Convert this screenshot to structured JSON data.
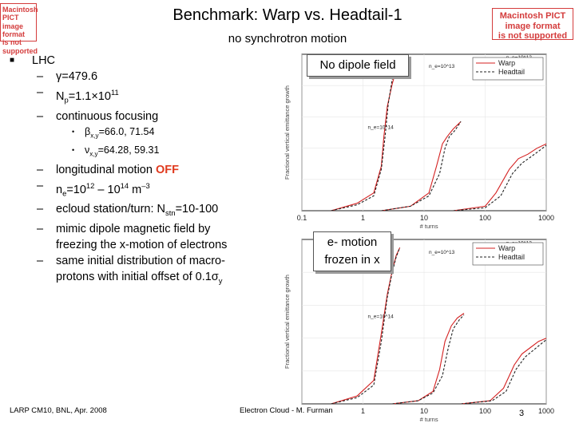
{
  "header": {
    "title": "Benchmark: Warp vs. Headtail-1",
    "subtitle": "no synchrotron motion",
    "pict_left": [
      "Macintosh PICT",
      "image format",
      "is not supported"
    ],
    "pict_right": [
      "Macintosh PICT",
      "image format",
      "is not supported"
    ]
  },
  "bullets": {
    "lhc": "LHC",
    "gamma": "γ=479.6",
    "np_prefix": "N",
    "np_sub": "p",
    "np_mid": "=1.1×10",
    "np_sup": "11",
    "continuous": "continuous focusing",
    "beta_prefix": "β",
    "beta_sub": "x,y",
    "beta_val": "=66.0, 71.54",
    "nu_prefix": "ν",
    "nu_sub": "x,y",
    "nu_val": "=64.28, 59.31",
    "long_text": "longitudinal motion ",
    "long_off": "OFF",
    "ne_prefix": "n",
    "ne_sub": "e",
    "ne_eq": "=10",
    "ne_sup1": "12",
    "ne_dash": " – 10",
    "ne_sup2": "14",
    "ne_unit": " m",
    "ne_sup3": "–3",
    "ecloud_prefix": "ecloud station/turn: N",
    "ecloud_sub": "stn",
    "ecloud_val": "=10-100",
    "mimic_1": "mimic dipole magnetic field by",
    "mimic_2": "freezing the x-motion of electrons",
    "same_1": "same initial distribution of macro-",
    "same_2_prefix": "protons with initial offset of 0.1σ",
    "same_2_sub": "y"
  },
  "callouts": {
    "no_dipole": "No dipole field",
    "frozen_1": "e- motion",
    "frozen_2": "frozen in x"
  },
  "footer": {
    "left": "LARP CM10, BNL, Apr. 2008",
    "center": "Electron Cloud - M. Furman",
    "page": "3"
  },
  "colors": {
    "warp": "#d42020",
    "headtail": "#222222",
    "off": "#e03a1e",
    "pict": "#d43c3c"
  },
  "chart_data": [
    {
      "type": "line",
      "title": "",
      "xlabel": "# turns",
      "ylabel": "Fractional vertical emittance growth",
      "xscale": "log",
      "xlim": [
        0.1,
        1000
      ],
      "xticks": [
        "0.1",
        "1",
        "10",
        "100",
        "1000"
      ],
      "legend": [
        "Warp",
        "Headtail"
      ],
      "annotations": [
        "n_e=10^14",
        "n_e=10^13",
        "n_e=10^12"
      ],
      "series": [
        {
          "name": "Warp n_e=10^14",
          "x": [
            0.3,
            0.8,
            1.5,
            2.0,
            2.2,
            2.5,
            3.0,
            3.5,
            4.0
          ],
          "y": [
            0.0,
            0.05,
            0.12,
            0.3,
            0.5,
            0.7,
            0.85,
            0.95,
            1.0
          ]
        },
        {
          "name": "Headtail n_e=10^14",
          "x": [
            0.3,
            0.8,
            1.5,
            2.0,
            2.3,
            2.6,
            3.0,
            3.5,
            4.0
          ],
          "y": [
            0.0,
            0.04,
            0.1,
            0.28,
            0.5,
            0.72,
            0.88,
            0.96,
            1.0
          ]
        },
        {
          "name": "Warp n_e=10^13",
          "x": [
            2,
            6,
            12,
            16,
            20,
            24,
            30,
            40
          ],
          "y": [
            0.0,
            0.03,
            0.12,
            0.3,
            0.45,
            0.5,
            0.55,
            0.6
          ]
        },
        {
          "name": "Headtail n_e=10^13",
          "x": [
            2,
            6,
            12,
            18,
            22,
            26,
            32,
            40
          ],
          "y": [
            0.0,
            0.03,
            0.1,
            0.25,
            0.42,
            0.5,
            0.54,
            0.6
          ]
        },
        {
          "name": "Warp n_e=10^12",
          "x": [
            30,
            100,
            150,
            250,
            350,
            500,
            700,
            1000
          ],
          "y": [
            0.0,
            0.03,
            0.12,
            0.28,
            0.35,
            0.38,
            0.42,
            0.45
          ]
        },
        {
          "name": "Headtail n_e=10^12",
          "x": [
            30,
            100,
            180,
            280,
            400,
            550,
            750,
            1000
          ],
          "y": [
            0.0,
            0.02,
            0.1,
            0.25,
            0.32,
            0.36,
            0.4,
            0.44
          ]
        }
      ]
    },
    {
      "type": "line",
      "title": "",
      "xlabel": "# turns",
      "ylabel": "Fractional vertical emittance growth",
      "xscale": "log",
      "xlim": [
        0.1,
        1000
      ],
      "xticks": [
        "1",
        "10",
        "100",
        "1000"
      ],
      "legend": [
        "Warp",
        "Headtail"
      ],
      "annotations": [
        "n_e=10^14",
        "n_e=10^13",
        "n_e=10^12"
      ],
      "series": [
        {
          "name": "Warp n_e=10^14",
          "x": [
            0.3,
            0.8,
            1.5,
            2.0,
            2.5,
            3.0,
            3.5,
            4.0
          ],
          "y": [
            0.0,
            0.05,
            0.15,
            0.45,
            0.7,
            0.85,
            0.95,
            1.0
          ]
        },
        {
          "name": "Headtail n_e=10^14",
          "x": [
            0.3,
            0.8,
            1.5,
            2.0,
            2.5,
            3.0,
            3.5,
            4.0
          ],
          "y": [
            0.0,
            0.04,
            0.12,
            0.4,
            0.68,
            0.84,
            0.94,
            1.0
          ]
        },
        {
          "name": "Warp n_e=10^13",
          "x": [
            3,
            8,
            14,
            18,
            22,
            28,
            35,
            45
          ],
          "y": [
            0.0,
            0.02,
            0.08,
            0.22,
            0.4,
            0.5,
            0.55,
            0.58
          ]
        },
        {
          "name": "Headtail n_e=10^13",
          "x": [
            3,
            8,
            14,
            20,
            25,
            30,
            38,
            45
          ],
          "y": [
            0.0,
            0.02,
            0.07,
            0.18,
            0.36,
            0.48,
            0.54,
            0.57
          ]
        },
        {
          "name": "Warp n_e=10^12",
          "x": [
            40,
            120,
            200,
            300,
            400,
            550,
            750,
            1000
          ],
          "y": [
            0.0,
            0.02,
            0.1,
            0.25,
            0.32,
            0.36,
            0.4,
            0.42
          ]
        },
        {
          "name": "Headtail n_e=10^12",
          "x": [
            40,
            130,
            220,
            320,
            450,
            600,
            800,
            1000
          ],
          "y": [
            0.0,
            0.02,
            0.08,
            0.22,
            0.3,
            0.34,
            0.38,
            0.41
          ]
        }
      ]
    }
  ]
}
